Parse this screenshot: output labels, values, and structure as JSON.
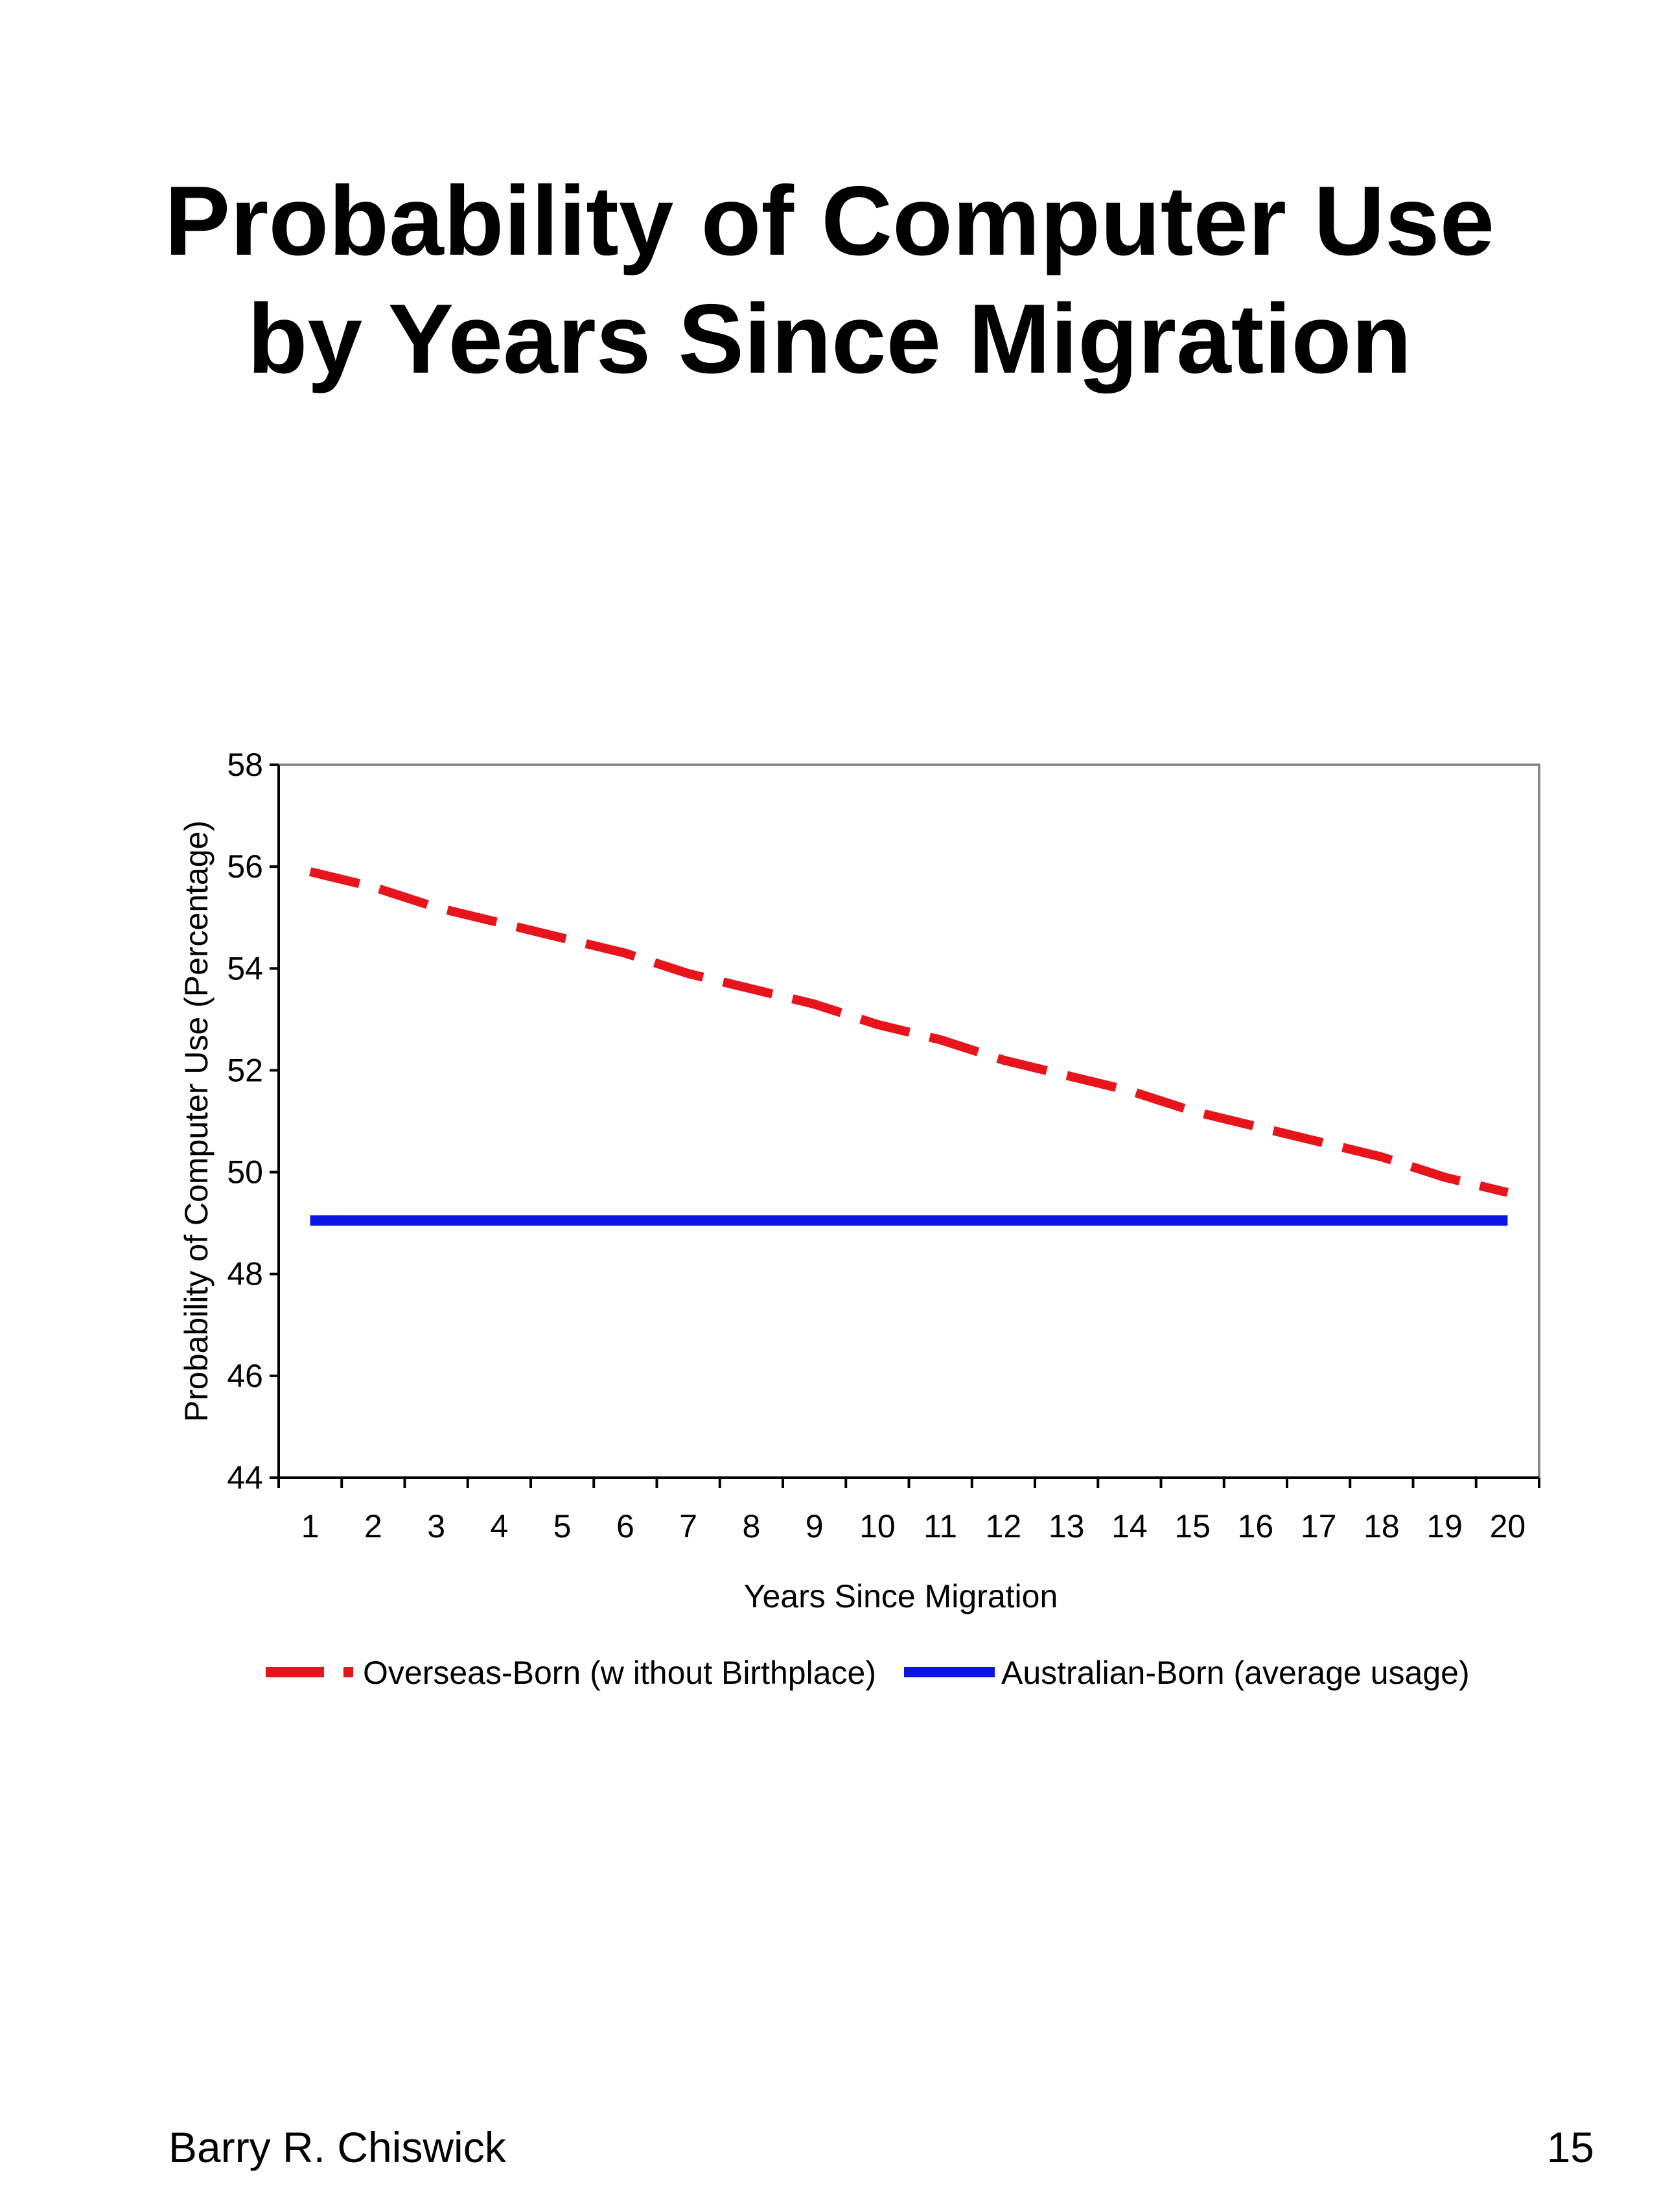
{
  "slide": {
    "title_lines": [
      "Probability of Computer Use",
      "by Years Since Migration"
    ],
    "author": "Barry R. Chiswick",
    "page_number": "15"
  },
  "chart_data": {
    "type": "line",
    "title": "",
    "xlabel": "Years Since Migration",
    "ylabel": "Probability of Computer Use (Percentage)",
    "categories": [
      "1",
      "2",
      "3",
      "4",
      "5",
      "6",
      "7",
      "8",
      "9",
      "10",
      "11",
      "12",
      "13",
      "14",
      "15",
      "16",
      "17",
      "18",
      "19",
      "20"
    ],
    "ylim": [
      44,
      58
    ],
    "yticks": [
      44,
      46,
      48,
      50,
      52,
      54,
      56,
      58
    ],
    "grid": false,
    "legend_position": "bottom",
    "series": [
      {
        "name": "Overseas-Born (w ithout Birthplace)",
        "color": "#e8141b",
        "style": "dashed",
        "values": [
          55.9,
          55.6,
          55.2,
          54.9,
          54.6,
          54.3,
          53.9,
          53.6,
          53.3,
          52.9,
          52.6,
          52.2,
          51.9,
          51.6,
          51.2,
          50.9,
          50.6,
          50.3,
          49.9,
          49.6
        ]
      },
      {
        "name": "Australian-Born (average usage)",
        "color": "#0a14e6",
        "style": "solid",
        "values": [
          49.05,
          49.05,
          49.05,
          49.05,
          49.05,
          49.05,
          49.05,
          49.05,
          49.05,
          49.05,
          49.05,
          49.05,
          49.05,
          49.05,
          49.05,
          49.05,
          49.05,
          49.05,
          49.05,
          49.05
        ]
      }
    ]
  }
}
